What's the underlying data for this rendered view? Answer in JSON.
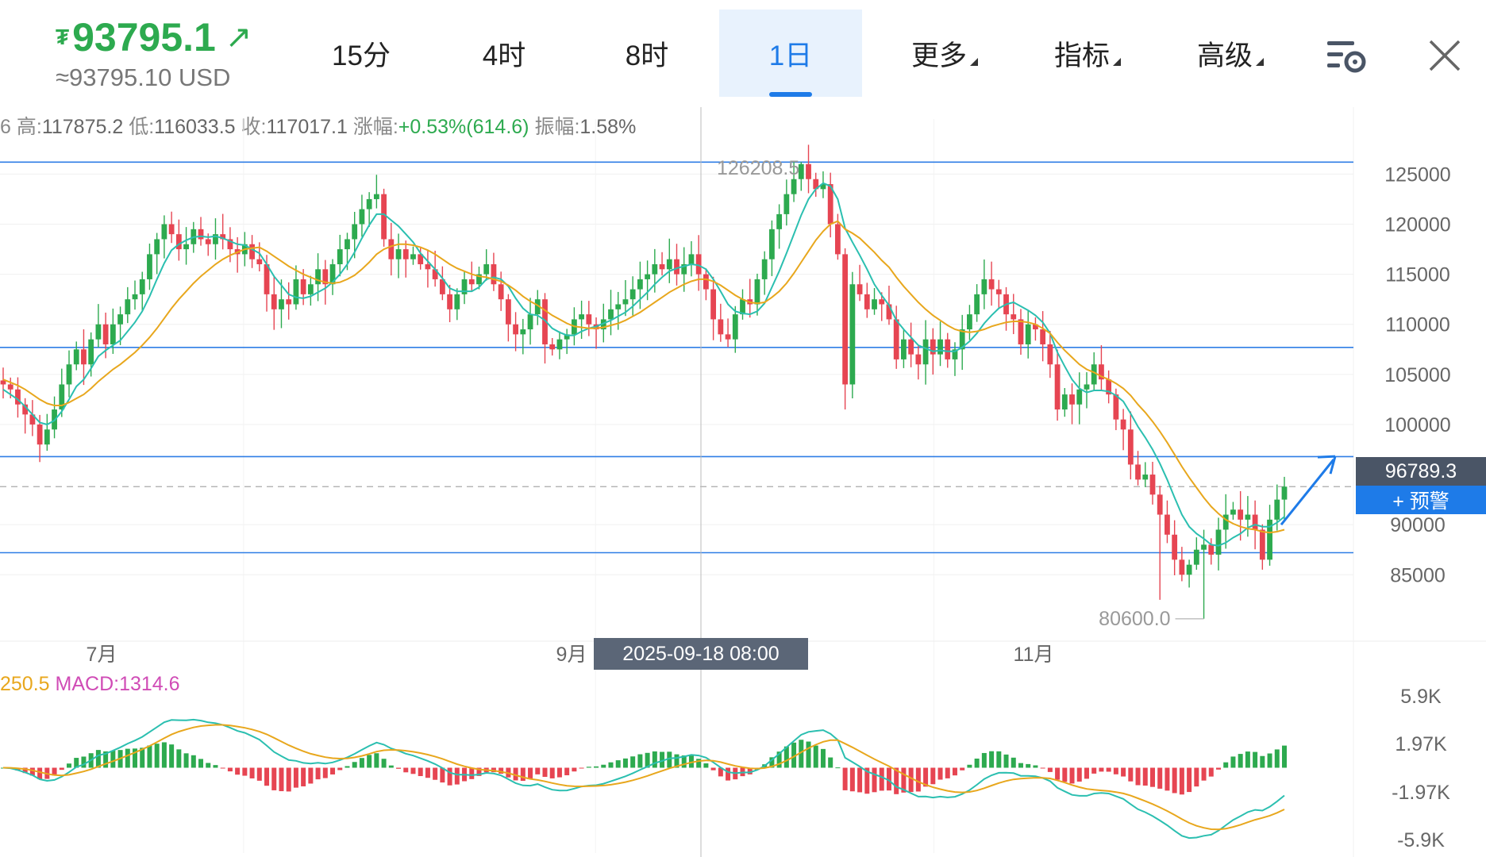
{
  "header": {
    "price_currency_symbol": "₮",
    "price": "93795.1",
    "price_trend_icon": "arrow-up-right-icon",
    "usd_price": "≈93795.10 USD",
    "tabs": [
      {
        "label": "15分",
        "active": false
      },
      {
        "label": "4时",
        "active": false
      },
      {
        "label": "8时",
        "active": false
      },
      {
        "label": "1日",
        "active": true
      },
      {
        "label": "更多",
        "active": false,
        "dropdown": true
      },
      {
        "label": "指标",
        "active": false,
        "dropdown": true
      },
      {
        "label": "高级",
        "active": false,
        "dropdown": true
      }
    ],
    "settings_icon": "chart-settings-icon",
    "close_icon": "close-icon"
  },
  "stats": {
    "prefix": "6",
    "high_label": "高:",
    "high": "117875.2",
    "low_label": "低:",
    "low": "116033.5",
    "close_label": "收:",
    "close": "117017.1",
    "change_label": "涨幅:",
    "change": "+0.53%(614.6)",
    "amplitude_label": "振幅:",
    "amplitude": "1.58%"
  },
  "price_badge": "96789.3",
  "alert_button": "+ 预警",
  "crosshair_date": "2025-09-18 08:00",
  "macd": {
    "dif_label": "250.5",
    "macd_label": "MACD:1314.6"
  },
  "colors": {
    "up": "#2daa4f",
    "down": "#e64552",
    "accent": "#1e7be8",
    "ma_fast": "#2bbfb0",
    "ma_slow": "#e8a71d",
    "hline": "#2f7ee6"
  },
  "chart_data": {
    "type": "candlestick",
    "price_axis": {
      "ticks": [
        {
          "label": "125000",
          "value": 125000
        },
        {
          "label": "120000",
          "value": 120000
        },
        {
          "label": "115000",
          "value": 115000
        },
        {
          "label": "110000",
          "value": 110000
        },
        {
          "label": "105000",
          "value": 105000
        },
        {
          "label": "100000",
          "value": 100000
        },
        {
          "label": "90000",
          "value": 90000
        },
        {
          "label": "85000",
          "value": 85000
        }
      ],
      "range": [
        79000,
        130500
      ]
    },
    "time_axis": [
      "7月",
      "9月",
      "11月"
    ],
    "annotations": {
      "max_label": "126208.5",
      "max_value": 126208.5,
      "min_label": "80600.0",
      "min_value": 80600.0
    },
    "horizontal_lines": [
      126200,
      107700,
      96789.3,
      87200
    ],
    "current_price_line": 93795.1,
    "trend_arrow": {
      "from": 90000,
      "to": 96500
    },
    "macd_axis": {
      "ticks": [
        {
          "label": "5.9K",
          "value": 5900
        },
        {
          "label": "1.97K",
          "value": 1970
        },
        {
          "label": "-1.97K",
          "value": -1970
        },
        {
          "label": "-5.9K",
          "value": -5900
        }
      ],
      "range": [
        -7000,
        7000
      ]
    },
    "close_path": [
      104000,
      103500,
      102000,
      101000,
      100000,
      98000,
      99500,
      101500,
      104000,
      106000,
      107500,
      106000,
      108500,
      110000,
      108000,
      110000,
      111000,
      112500,
      113000,
      114500,
      117000,
      118500,
      120000,
      119000,
      117500,
      118000,
      119500,
      118500,
      118000,
      119000,
      118500,
      117500,
      117000,
      118000,
      116500,
      116000,
      113000,
      111500,
      112500,
      112000,
      114500,
      113000,
      114000,
      115500,
      114000,
      116000,
      117500,
      118500,
      120000,
      121500,
      122500,
      123000,
      118500,
      116500,
      117500,
      116500,
      117000,
      116000,
      115500,
      114500,
      113000,
      111500,
      113000,
      114500,
      114000,
      115000,
      116000,
      114000,
      112500,
      110000,
      109000,
      109500,
      111000,
      112500,
      108000,
      107500,
      108500,
      109000,
      110500,
      111000,
      110000,
      109500,
      110500,
      111500,
      112000,
      112500,
      113500,
      114500,
      115000,
      116000,
      115500,
      116500,
      115000,
      116000,
      117000,
      115000,
      113500,
      110500,
      109000,
      108500,
      111000,
      112500,
      112000,
      114500,
      116500,
      119500,
      121000,
      123000,
      124500,
      126000,
      124500,
      123500,
      124000,
      120000,
      117000,
      104000,
      114000,
      113000,
      111500,
      112500,
      112000,
      110500,
      106500,
      108500,
      107000,
      106000,
      108500,
      107000,
      108500,
      106500,
      107500,
      109500,
      111000,
      113000,
      114500,
      113500,
      113000,
      111000,
      110500,
      108000,
      110000,
      109500,
      108000,
      106000,
      101500,
      103000,
      102000,
      103500,
      104000,
      106000,
      104500,
      103000,
      100500,
      99500,
      96000,
      94500,
      95000,
      93000,
      91000,
      89000,
      86500,
      85000,
      86000,
      87500,
      88000,
      87000,
      89500,
      91000,
      91500,
      90500,
      91000,
      89500,
      86500,
      90500,
      92500,
      93795.1
    ],
    "ma_fast": [
      103500,
      103000,
      102500,
      101800,
      101000,
      100200,
      100000,
      100400,
      101300,
      102500,
      103800,
      104500,
      105600,
      106800,
      107400,
      107900,
      108400,
      109300,
      110200,
      111300,
      112800,
      114500,
      116100,
      117400,
      118000,
      118400,
      118700,
      118800,
      118700,
      118800,
      118600,
      118300,
      118000,
      117900,
      117500,
      117100,
      116000,
      114800,
      113900,
      113000,
      112700,
      112600,
      112800,
      113200,
      113600,
      114200,
      115000,
      116000,
      117200,
      118600,
      119900,
      121000,
      121000,
      120400,
      119800,
      119000,
      118200,
      117100,
      116300,
      115500,
      114600,
      113600,
      113300,
      113300,
      113300,
      113700,
      114500,
      114700,
      114500,
      113800,
      112600,
      111600,
      111000,
      110900,
      110400,
      109600,
      109200,
      108900,
      108900,
      109300,
      109600,
      109800,
      110100,
      110400,
      110800,
      111200,
      111800,
      112500,
      113200,
      114000,
      114700,
      115300,
      115600,
      115800,
      116000,
      115900,
      115500,
      114500,
      113300,
      112000,
      111300,
      111100,
      111000,
      111300,
      112100,
      113700,
      115300,
      117100,
      119000,
      120900,
      122500,
      123500,
      124100,
      123800,
      122500,
      119600,
      118200,
      116900,
      115500,
      114000,
      112900,
      111900,
      110400,
      109500,
      108700,
      107900,
      107600,
      107300,
      107400,
      107300,
      107300,
      107700,
      108300,
      109100,
      110100,
      110900,
      111600,
      112000,
      112200,
      111800,
      111400,
      110900,
      110200,
      109100,
      107200,
      105800,
      104500,
      103600,
      103200,
      103400,
      103400,
      103300,
      102900,
      102300,
      101100,
      99800,
      98700,
      97500,
      96100,
      94500,
      92700,
      91000,
      89800,
      89100,
      88600,
      88000,
      87900,
      88200,
      88700,
      89100,
      89700,
      90000,
      89800,
      89800,
      90200,
      90800
    ],
    "ma_slow": [
      104500,
      104200,
      103900,
      103500,
      103000,
      102500,
      102100,
      101900,
      101900,
      102200,
      102600,
      103000,
      103600,
      104300,
      104900,
      105500,
      106000,
      106600,
      107200,
      107900,
      108700,
      109600,
      110600,
      111600,
      112500,
      113300,
      114100,
      114800,
      115400,
      116000,
      116500,
      116900,
      117200,
      117500,
      117600,
      117700,
      117300,
      116800,
      116300,
      115800,
      115400,
      115000,
      114700,
      114400,
      114200,
      114100,
      114200,
      114500,
      114900,
      115500,
      116200,
      117000,
      117500,
      117800,
      118000,
      118000,
      117900,
      117700,
      117400,
      117000,
      116500,
      116000,
      115600,
      115300,
      115000,
      114800,
      114700,
      114500,
      114300,
      113900,
      113400,
      112800,
      112300,
      111900,
      111400,
      110900,
      110500,
      110100,
      109800,
      109700,
      109600,
      109600,
      109700,
      109900,
      110100,
      110400,
      110800,
      111200,
      111700,
      112200,
      112700,
      113200,
      113600,
      114000,
      114300,
      114500,
      114500,
      114300,
      113900,
      113400,
      112900,
      112500,
      112200,
      112100,
      112200,
      112700,
      113300,
      114100,
      115100,
      116200,
      117300,
      118400,
      119300,
      120000,
      120300,
      119500,
      119100,
      118600,
      117900,
      117200,
      116400,
      115700,
      114700,
      113800,
      113000,
      112200,
      111500,
      110900,
      110400,
      109900,
      109500,
      109300,
      109200,
      109300,
      109500,
      109800,
      110000,
      110200,
      110300,
      110300,
      110200,
      110000,
      109600,
      109100,
      108200,
      107400,
      106700,
      106000,
      105500,
      105200,
      104800,
      104500,
      104100,
      103600,
      102900,
      102000,
      101200,
      100300,
      99300,
      98200,
      97000,
      95800,
      94700,
      93700,
      92700,
      91800,
      91100,
      90500,
      90100,
      89800,
      89600,
      89500,
      89300,
      89200,
      89300,
      89500
    ]
  }
}
